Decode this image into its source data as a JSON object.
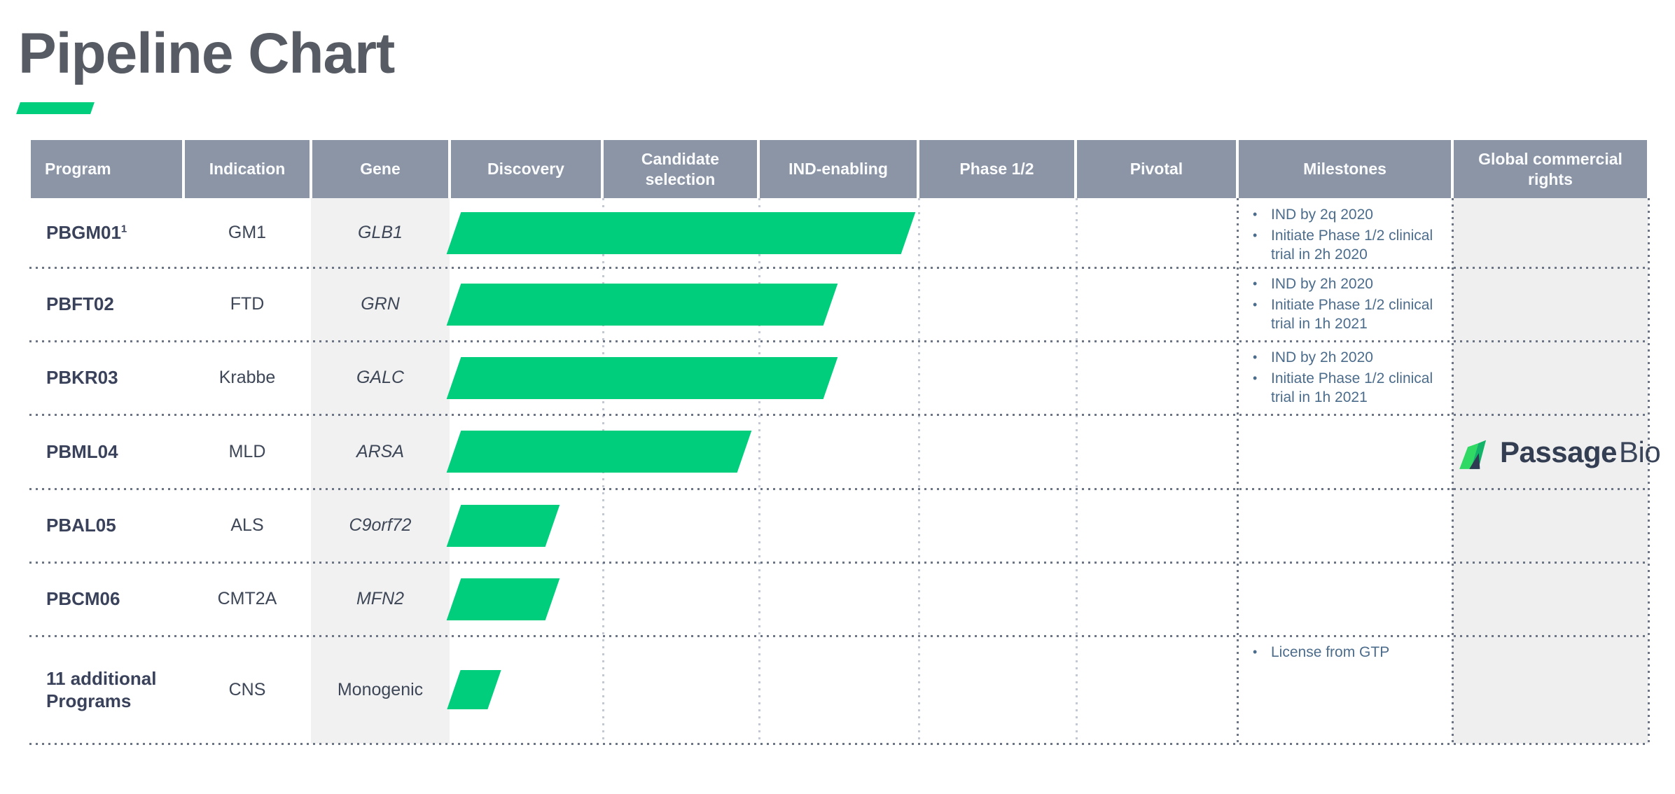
{
  "page": {
    "title": "Pipeline Chart"
  },
  "colors": {
    "bar_green": "#00CE7D",
    "header_bg": "#8B95A6",
    "shaded_column_bg": "#F1F1F1",
    "milestone_text": "#4C6C8C",
    "program_text": "#39425A",
    "logo_green_light": "#2FD963",
    "logo_green_dark": "#12B469",
    "logo_navy": "#2F3B52"
  },
  "table": {
    "columns": [
      {
        "label": "Program"
      },
      {
        "label": "Indication"
      },
      {
        "label": "Gene"
      },
      {
        "label": "Discovery"
      },
      {
        "label": "Candidate selection"
      },
      {
        "label": "IND-enabling"
      },
      {
        "label": "Phase 1/2"
      },
      {
        "label": "Pivotal"
      },
      {
        "label": "Milestones"
      },
      {
        "label": "Global commercial rights"
      }
    ],
    "phase_columns": [
      "Discovery",
      "Candidate selection",
      "IND-enabling",
      "Phase 1/2",
      "Pivotal"
    ],
    "rows": [
      {
        "program": "PBGM01",
        "footnote": "1",
        "indication": "GM1",
        "gene": "GLB1",
        "gene_italic": true,
        "progress_units": 3.0,
        "progress_phase": "IND-enabling",
        "milestones": [
          "IND by 2q 2020",
          "Initiate Phase 1/2 clinical trial in 2h 2020"
        ]
      },
      {
        "program": "PBFT02",
        "footnote": "",
        "indication": "FTD",
        "gene": "GRN",
        "gene_italic": true,
        "progress_units": 2.5,
        "progress_phase": "IND-enabling",
        "milestones": [
          "IND by 2h 2020",
          "Initiate Phase 1/2 clinical trial in 1h 2021"
        ]
      },
      {
        "program": "PBKR03",
        "footnote": "",
        "indication": "Krabbe",
        "gene": "GALC",
        "gene_italic": true,
        "progress_units": 2.5,
        "progress_phase": "IND-enabling",
        "milestones": [
          "IND by 2h 2020",
          "Initiate Phase 1/2 clinical trial in 1h 2021"
        ]
      },
      {
        "program": "PBML04",
        "footnote": "",
        "indication": "MLD",
        "gene": "ARSA",
        "gene_italic": true,
        "progress_units": 1.95,
        "progress_phase": "Candidate selection",
        "milestones": []
      },
      {
        "program": "PBAL05",
        "footnote": "",
        "indication": "ALS",
        "gene": "C9orf72",
        "gene_italic": true,
        "progress_units": 0.72,
        "progress_phase": "Discovery",
        "milestones": []
      },
      {
        "program": "PBCM06",
        "footnote": "",
        "indication": "CMT2A",
        "gene": "MFN2",
        "gene_italic": true,
        "progress_units": 0.72,
        "progress_phase": "Discovery",
        "milestones": []
      },
      {
        "program": "11 additional Programs",
        "footnote": "",
        "indication": "CNS",
        "gene": "Monogenic",
        "gene_italic": false,
        "progress_units": 0.35,
        "progress_phase": "Discovery",
        "milestones": [
          "License from GTP"
        ]
      }
    ]
  },
  "logo": {
    "name_bold": "Passage",
    "name_light": "Bio"
  },
  "chart_data": {
    "type": "bar",
    "title": "Pipeline Chart",
    "categories": [
      "PBGM01",
      "PBFT02",
      "PBKR03",
      "PBML04",
      "PBAL05",
      "PBCM06",
      "11 additional Programs"
    ],
    "values": [
      3.0,
      2.5,
      2.5,
      1.95,
      0.72,
      0.72,
      0.35
    ],
    "value_units": "development phases completed from start of Discovery (1 unit = one phase column)",
    "phases": [
      "Discovery",
      "Candidate selection",
      "IND-enabling",
      "Phase 1/2",
      "Pivotal"
    ],
    "xlim": [
      0,
      5
    ],
    "bar_color": "#00CE7D",
    "annotations": {
      "PBGM01": [
        "IND by 2q 2020",
        "Initiate Phase 1/2 clinical trial in 2h 2020"
      ],
      "PBFT02": [
        "IND by 2h 2020",
        "Initiate Phase 1/2 clinical trial in 1h 2021"
      ],
      "PBKR03": [
        "IND by 2h 2020",
        "Initiate Phase 1/2 clinical trial in 1h 2021"
      ],
      "11 additional Programs": [
        "License from GTP"
      ]
    }
  }
}
